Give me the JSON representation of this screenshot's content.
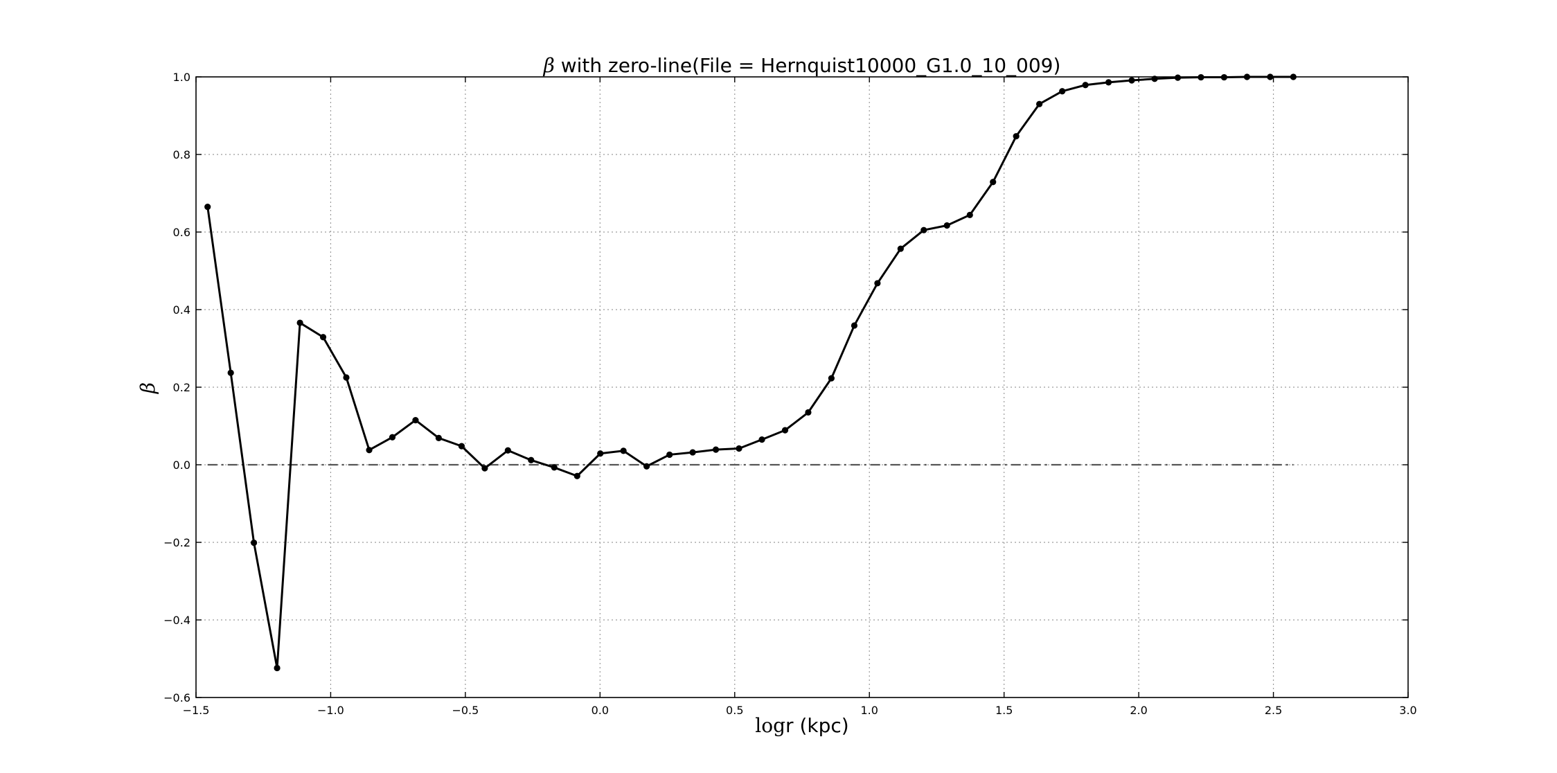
{
  "chart_data": {
    "type": "line",
    "title_symbol": "β",
    "title_text": " with zero-line(File = Hernquist10000_G1.0_10_009)",
    "xlabel_symbol": "log",
    "xlabel_text": "r (kpc)",
    "ylabel": "β",
    "xlim": [
      -1.5,
      3.0
    ],
    "ylim": [
      -0.6,
      1.0
    ],
    "xticks": [
      -1.5,
      -1.0,
      -0.5,
      0.0,
      0.5,
      1.0,
      1.5,
      2.0,
      2.5,
      3.0
    ],
    "xtick_labels": [
      "−1.5",
      "−1.0",
      "−0.5",
      "0.0",
      "0.5",
      "1.0",
      "1.5",
      "2.0",
      "2.5",
      "3.0"
    ],
    "yticks": [
      -0.6,
      -0.4,
      -0.2,
      0.0,
      0.2,
      0.4,
      0.6,
      0.8,
      1.0
    ],
    "ytick_labels": [
      "−0.6",
      "−0.4",
      "−0.2",
      "0.0",
      "0.2",
      "0.4",
      "0.6",
      "0.8",
      "1.0"
    ],
    "grid": true,
    "series": [
      {
        "style": "solid-line-with-circle-markers",
        "color": "#000000",
        "x": [
          -1.457,
          -1.371,
          -1.285,
          -1.199,
          -1.114,
          -1.028,
          -0.942,
          -0.857,
          -0.771,
          -0.685,
          -0.599,
          -0.514,
          -0.428,
          -0.342,
          -0.256,
          -0.17,
          -0.085,
          0.001,
          0.087,
          0.173,
          0.258,
          0.344,
          0.43,
          0.516,
          0.601,
          0.687,
          0.773,
          0.859,
          0.944,
          1.03,
          1.116,
          1.202,
          1.288,
          1.373,
          1.459,
          1.545,
          1.631,
          1.716,
          1.802,
          1.888,
          1.974,
          2.059,
          2.145,
          2.231,
          2.317,
          2.402,
          2.488,
          2.574
        ],
        "y": [
          0.665,
          0.237,
          -0.201,
          -0.524,
          0.366,
          0.329,
          0.225,
          0.038,
          0.071,
          0.115,
          0.069,
          0.048,
          -0.009,
          0.037,
          0.012,
          -0.007,
          -0.029,
          0.029,
          0.036,
          -0.004,
          0.026,
          0.032,
          0.039,
          0.042,
          0.065,
          0.089,
          0.135,
          0.223,
          0.359,
          0.468,
          0.557,
          0.605,
          0.617,
          0.644,
          0.729,
          0.847,
          0.93,
          0.963,
          0.979,
          0.986,
          0.991,
          0.995,
          0.998,
          0.999,
          0.999,
          1.0,
          1.0,
          1.0
        ]
      }
    ],
    "reference_line": {
      "y": 0.0,
      "x_range": [
        -1.457,
        2.574
      ],
      "style": "dash-dot",
      "color": "#555555"
    }
  }
}
